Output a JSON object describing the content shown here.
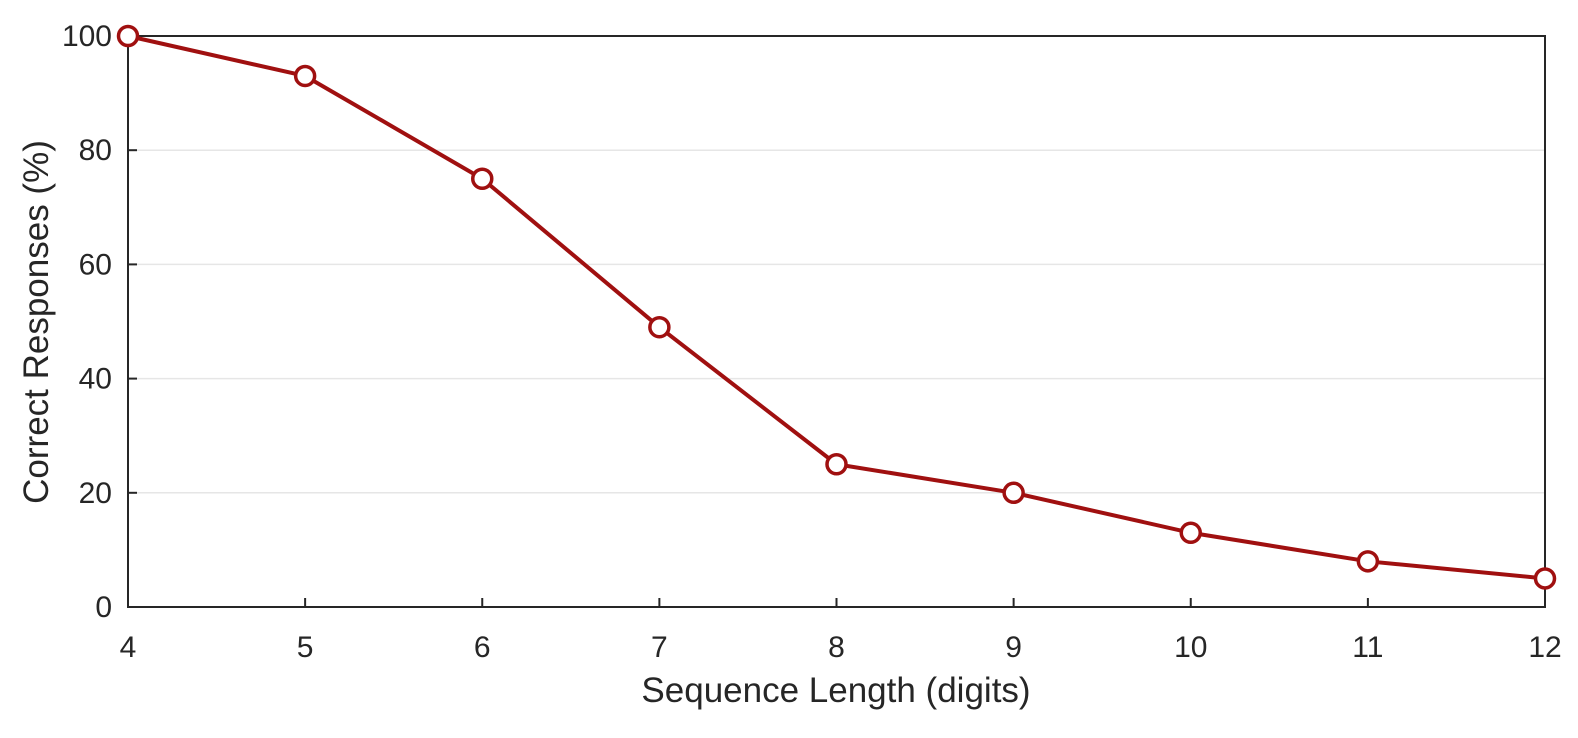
{
  "chart_data": {
    "type": "line",
    "title": "",
    "xlabel": "Sequence Length (digits)",
    "ylabel": "Correct Responses (%)",
    "x": [
      4,
      5,
      6,
      7,
      8,
      9,
      10,
      11,
      12
    ],
    "y": [
      100,
      93,
      75,
      49,
      25,
      20,
      13,
      8,
      5
    ],
    "series_name": "Correct Responses",
    "xlim": [
      4,
      12
    ],
    "ylim": [
      0,
      100
    ],
    "xticks": [
      4,
      5,
      6,
      7,
      8,
      9,
      10,
      11,
      12
    ],
    "yticks": [
      0,
      20,
      40,
      60,
      80,
      100
    ],
    "grid": "horizontal",
    "legend": "none",
    "line_color": "#a01010",
    "marker": "circle-open",
    "marker_fill": "#ffffff",
    "grid_color": "#e6e6e6",
    "axis_color": "#262626",
    "background_color": "#ffffff"
  }
}
